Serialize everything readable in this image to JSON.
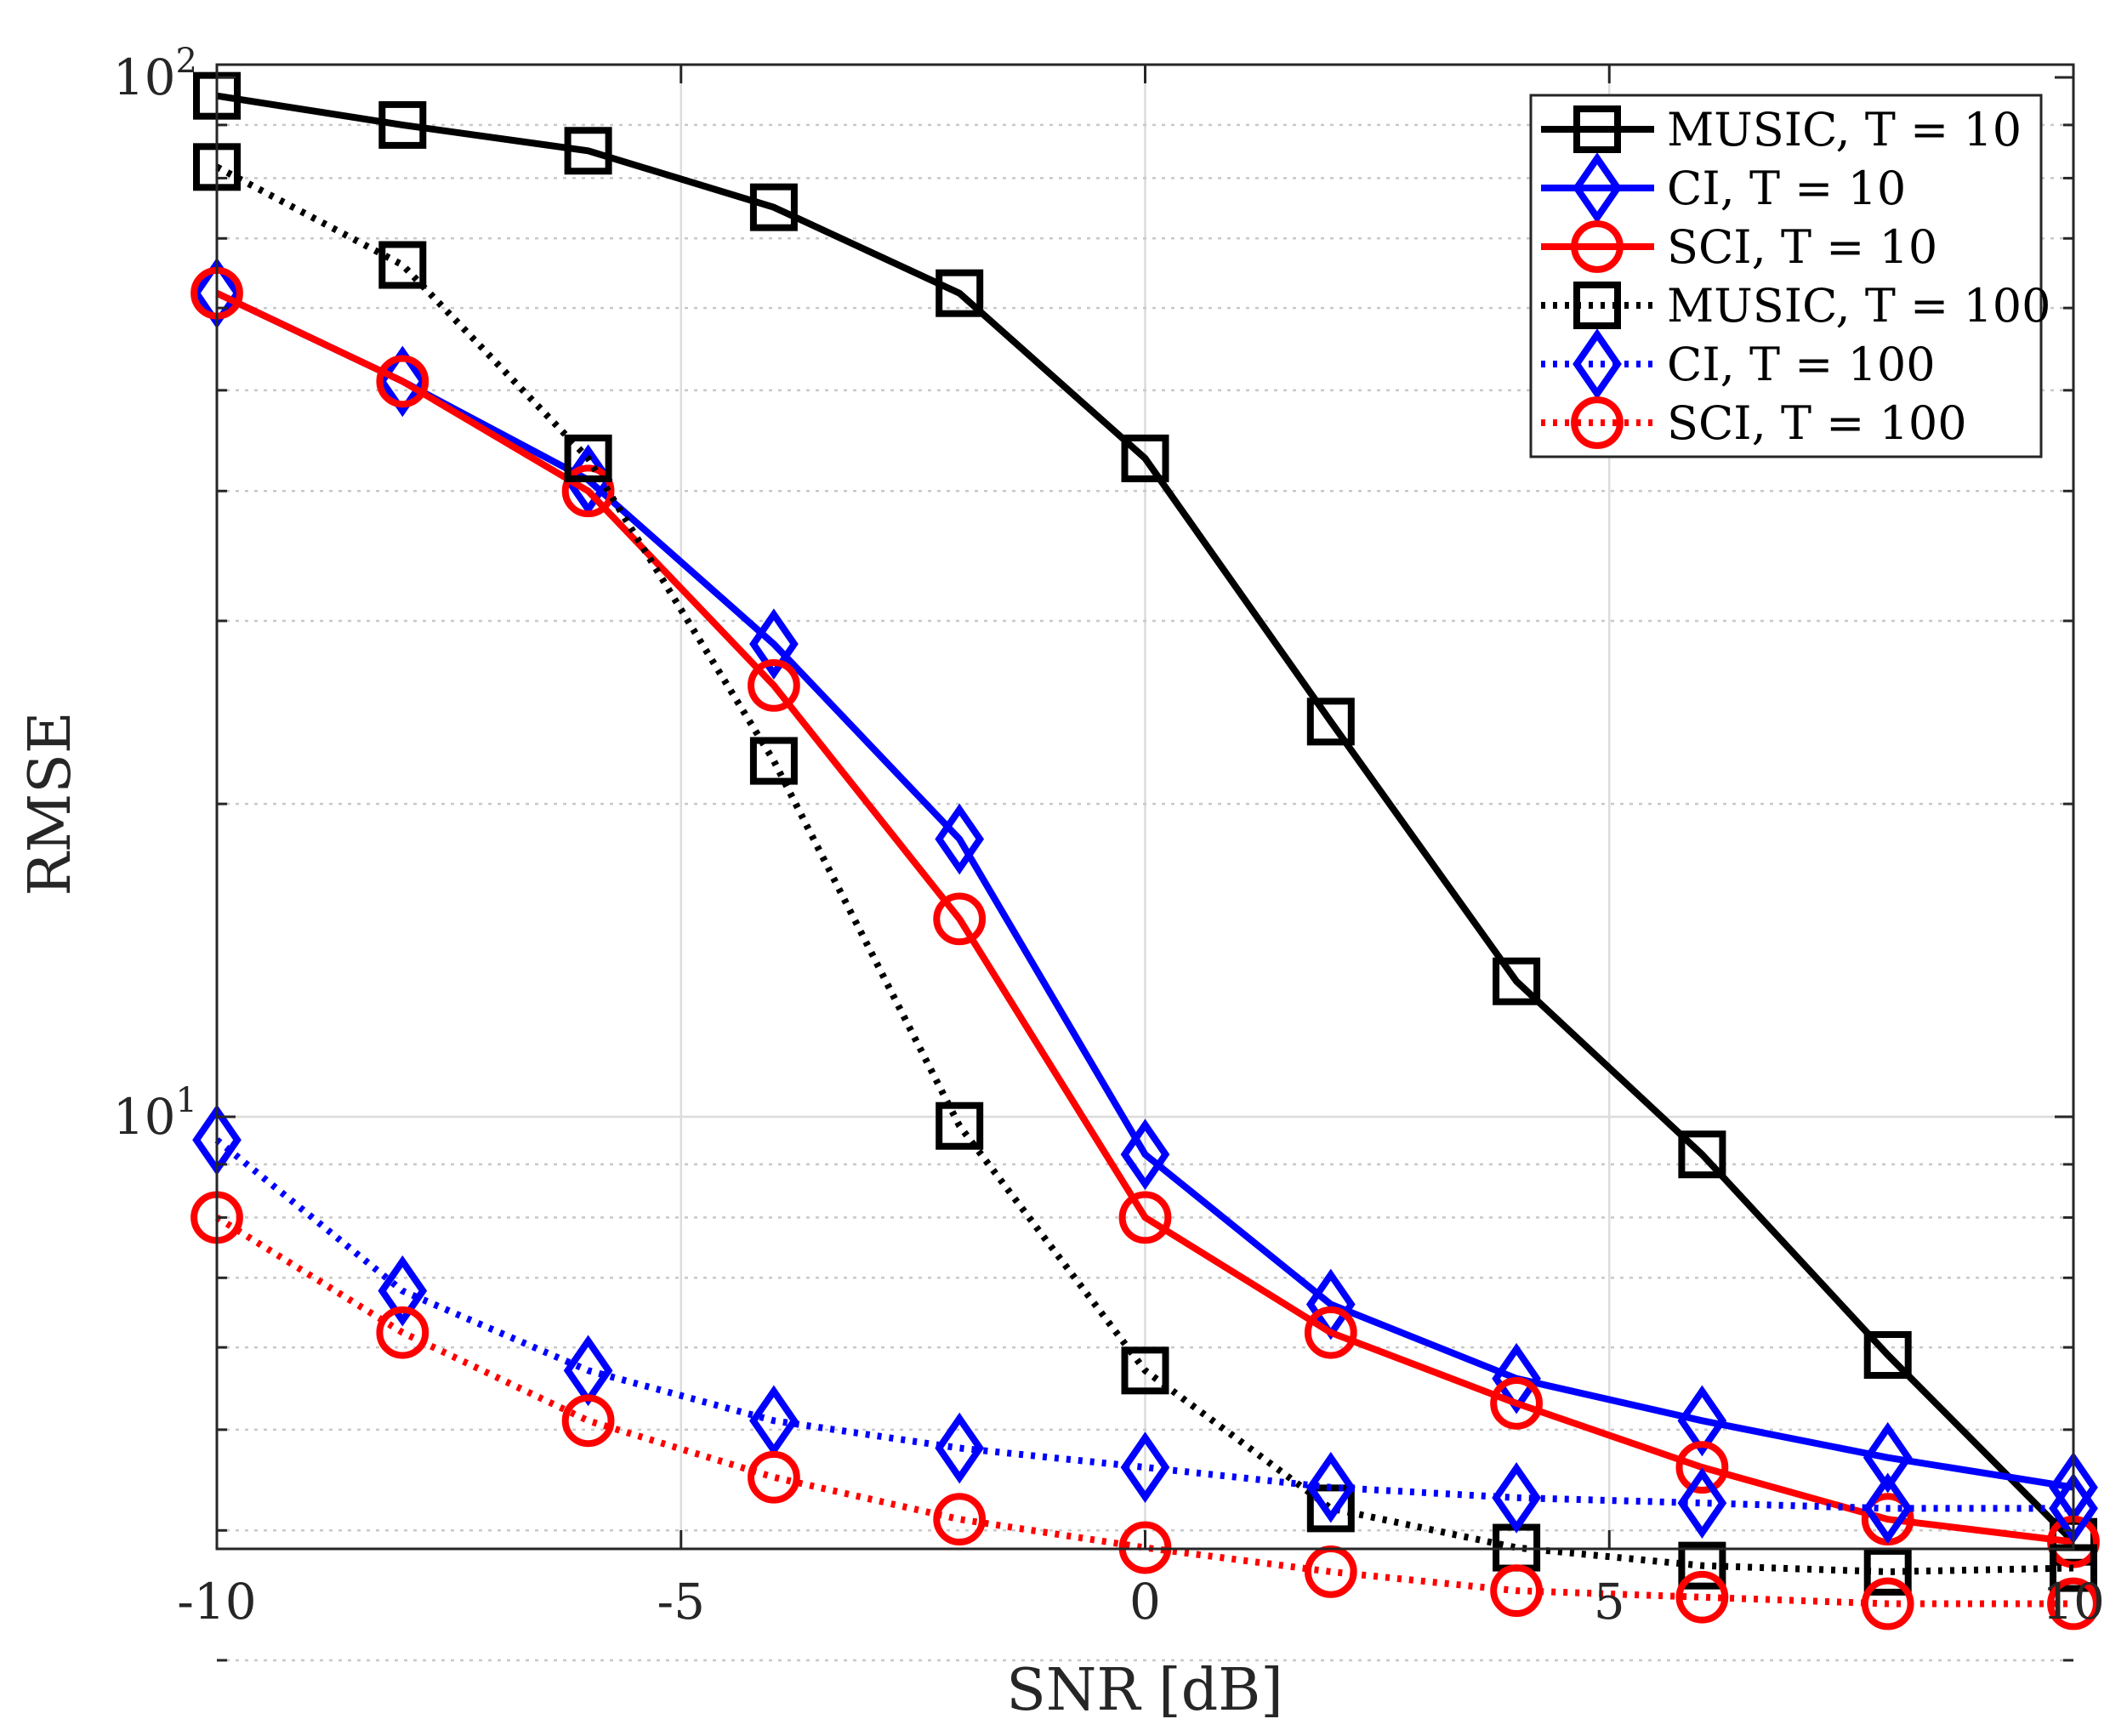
{
  "chart_data": {
    "type": "line",
    "title": "",
    "xlabel": "SNR [dB]",
    "ylabel": "RMSE",
    "xscale": "linear",
    "yscale": "log",
    "xlim": [
      -10,
      10
    ],
    "ylim": [
      3.0,
      100
    ],
    "grid": true,
    "x": [
      -10,
      -8,
      -6,
      -4,
      -2,
      0,
      2,
      4,
      6,
      8,
      10
    ],
    "xticks": [
      -10,
      -5,
      0,
      5,
      10
    ],
    "xtick_labels": [
      "-10",
      "-5",
      "0",
      "5",
      "10"
    ],
    "yticks": [
      {
        "value": 100,
        "base": "10",
        "exp": "2"
      },
      {
        "value": 10,
        "base": "10",
        "exp": "1"
      }
    ],
    "legend_location": "top-right",
    "series": [
      {
        "name": "MUSIC, T = 10",
        "color": "#000000",
        "style": "solid",
        "marker": "square",
        "values": [
          96,
          90,
          85,
          75,
          62,
          43,
          24,
          13.5,
          9.2,
          5.9,
          3.9
        ]
      },
      {
        "name": "CI, T = 10",
        "color": "#0000ff",
        "style": "solid",
        "marker": "diamond",
        "values": [
          62,
          51,
          41,
          28.5,
          18.5,
          9.2,
          6.6,
          5.6,
          5.1,
          4.7,
          4.4
        ]
      },
      {
        "name": "SCI, T = 10",
        "color": "#ff0000",
        "style": "solid",
        "marker": "circle",
        "values": [
          62,
          51,
          40,
          26,
          15.5,
          8.0,
          6.2,
          5.3,
          4.6,
          4.1,
          3.9
        ]
      },
      {
        "name": "MUSIC, T = 100",
        "color": "#000000",
        "style": "dotted",
        "marker": "square",
        "values": [
          82,
          66,
          43,
          22,
          9.8,
          5.7,
          4.2,
          3.85,
          3.7,
          3.65,
          3.68
        ]
      },
      {
        "name": "CI, T = 100",
        "color": "#0000ff",
        "style": "dotted",
        "marker": "diamond",
        "values": [
          9.5,
          6.8,
          5.7,
          5.1,
          4.8,
          4.6,
          4.4,
          4.3,
          4.25,
          4.2,
          4.2
        ]
      },
      {
        "name": "SCI, T = 100",
        "color": "#ff0000",
        "style": "dotted",
        "marker": "circle",
        "values": [
          8.0,
          6.2,
          5.1,
          4.5,
          4.1,
          3.85,
          3.65,
          3.5,
          3.45,
          3.4,
          3.4
        ]
      }
    ]
  }
}
